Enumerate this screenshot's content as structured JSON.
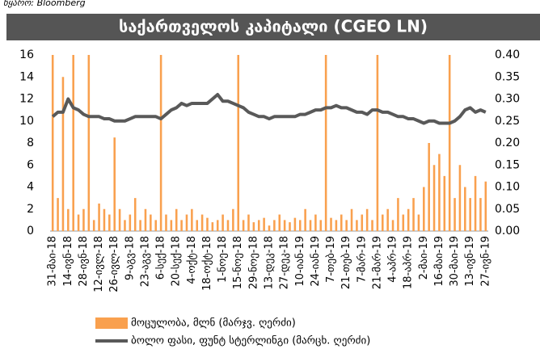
{
  "chart_data": {
    "type": "bar",
    "source": "წყარო: Bloomberg",
    "title": "საქართველოს კაპიტალი (CGEO LN)",
    "categories": [
      "31-მაი-18",
      null,
      null,
      "14-ივნ-18",
      null,
      null,
      "28-ივნ-18",
      null,
      null,
      "12-ივლ-18",
      null,
      null,
      "26-ივლ-18",
      null,
      null,
      "9-აგვ-18",
      null,
      null,
      "23-აგვ-18",
      null,
      null,
      "6-სექ-18",
      null,
      null,
      "20-სექ-18",
      null,
      null,
      "4-ოქტ-18",
      null,
      null,
      "18-ოქტ-18",
      null,
      null,
      "1-ნოე-18",
      null,
      null,
      "15-ნოე-18",
      null,
      null,
      "29-ნოე-18",
      null,
      null,
      "13-დეკ-18",
      null,
      null,
      "27-დეკ-18",
      null,
      null,
      "10-იან-19",
      null,
      null,
      "24-იან-19",
      null,
      null,
      "7-თებ-19",
      null,
      null,
      "21-თებ-19",
      null,
      null,
      "7-მარ-19",
      null,
      null,
      "21-მარ-19",
      null,
      null,
      "4-აპრ-19",
      null,
      null,
      "18-აპრ-19",
      null,
      null,
      "2-მაი-19",
      null,
      null,
      "16-მაი-19",
      null,
      null,
      "30-მაი-19",
      null,
      null,
      "13-ივნ-19",
      null,
      null,
      "27-ივნ-19"
    ],
    "series": [
      {
        "name": "მოცულობა, მლნ (მარჯვ. ღერძი)",
        "type": "bar",
        "color": "#f9a04e",
        "values": [
          16,
          3,
          14,
          2,
          16,
          1.5,
          2,
          16,
          1,
          2.5,
          2,
          1.5,
          8.5,
          2,
          1,
          1.5,
          3,
          1,
          2,
          1.5,
          1,
          16,
          1.5,
          1,
          2,
          1,
          1.5,
          2,
          1,
          1.5,
          1.2,
          0.8,
          1,
          1.5,
          1,
          2,
          16,
          1,
          1.5,
          0.8,
          1,
          1.2,
          0.5,
          1,
          1.5,
          1,
          0.8,
          1.2,
          1,
          2,
          1,
          1.5,
          1,
          16,
          1.2,
          1,
          1.5,
          1,
          2,
          1,
          1.5,
          2,
          1,
          16,
          1.5,
          2,
          1,
          3,
          1.5,
          2,
          3,
          1.5,
          4,
          8,
          6,
          7,
          5,
          16,
          3,
          6,
          4,
          3,
          5,
          3,
          4.5
        ]
      },
      {
        "name": "ბოლო ფასი, ფუნტ სტერლინგი (მარცხ. ღერძი)",
        "type": "line",
        "axis": "y2",
        "color": "#595959",
        "values": [
          0.26,
          0.27,
          0.27,
          0.3,
          0.28,
          0.275,
          0.265,
          0.26,
          0.26,
          0.26,
          0.255,
          0.255,
          0.25,
          0.25,
          0.25,
          0.255,
          0.26,
          0.26,
          0.26,
          0.26,
          0.26,
          0.255,
          0.265,
          0.275,
          0.28,
          0.29,
          0.285,
          0.29,
          0.29,
          0.29,
          0.29,
          0.3,
          0.31,
          0.295,
          0.295,
          0.29,
          0.285,
          0.28,
          0.27,
          0.265,
          0.26,
          0.26,
          0.255,
          0.26,
          0.26,
          0.26,
          0.26,
          0.26,
          0.265,
          0.265,
          0.27,
          0.275,
          0.275,
          0.28,
          0.28,
          0.285,
          0.28,
          0.28,
          0.275,
          0.27,
          0.27,
          0.265,
          0.275,
          0.275,
          0.27,
          0.27,
          0.265,
          0.26,
          0.26,
          0.255,
          0.255,
          0.25,
          0.245,
          0.25,
          0.25,
          0.245,
          0.245,
          0.245,
          0.25,
          0.26,
          0.275,
          0.28,
          0.27,
          0.275,
          0.27
        ]
      }
    ],
    "ylim": [
      0,
      16
    ],
    "yticks": [
      0,
      2,
      4,
      6,
      8,
      10,
      12,
      14,
      16
    ],
    "y2lim": [
      0,
      0.4
    ],
    "y2ticks": [
      {
        "value": 0,
        "label": "0.00"
      },
      {
        "value": 0.05,
        "label": "0.05"
      },
      {
        "value": 0.1,
        "label": "0.10"
      },
      {
        "value": 0.15,
        "label": "0.15"
      },
      {
        "value": 0.2,
        "label": "0.20"
      },
      {
        "value": 0.25,
        "label": "0.25"
      },
      {
        "value": 0.3,
        "label": "0.30"
      },
      {
        "value": 0.35,
        "label": "0.35"
      },
      {
        "value": 0.4,
        "label": "0.40"
      }
    ],
    "grid": false,
    "legend": "bottom"
  }
}
